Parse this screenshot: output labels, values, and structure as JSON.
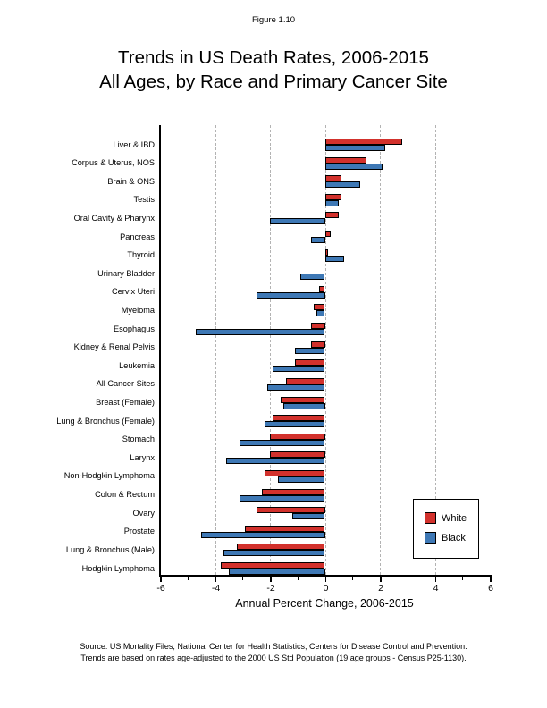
{
  "header": {
    "figure_label": "Figure 1.10",
    "title_line1": "Trends in US Death Rates, 2006-2015",
    "title_line2": "All Ages, by Race and Primary Cancer Site"
  },
  "chart_data": {
    "type": "bar",
    "orientation": "horizontal",
    "title": "Trends in US Death Rates, 2006-2015 — All Ages, by Race and Primary Cancer Site",
    "xlabel": "Annual Percent Change, 2006-2015",
    "xlim": [
      -6,
      6
    ],
    "major_ticks": [
      -6,
      -4,
      -2,
      0,
      2,
      4,
      6
    ],
    "minor_ticks": [
      -5,
      -3,
      -1,
      1,
      3,
      5
    ],
    "gridlines": [
      -4,
      -2,
      0,
      2,
      4
    ],
    "grid": "dashed-vertical",
    "legend_position": "inside-right",
    "categories": [
      "Liver & IBD",
      "Corpus & Uterus, NOS",
      "Brain & ONS",
      "Testis",
      "Oral Cavity & Pharynx",
      "Pancreas",
      "Thyroid",
      "Urinary Bladder",
      "Cervix Uteri",
      "Myeloma",
      "Esophagus",
      "Kidney & Renal Pelvis",
      "Leukemia",
      "All Cancer Sites",
      "Breast (Female)",
      "Lung & Bronchus (Female)",
      "Stomach",
      "Larynx",
      "Non-Hodgkin Lymphoma",
      "Colon & Rectum",
      "Ovary",
      "Prostate",
      "Lung & Bronchus (Male)",
      "Hodgkin Lymphoma"
    ],
    "series": [
      {
        "name": "White",
        "color": "#d2312c",
        "values": [
          2.8,
          1.5,
          0.6,
          0.6,
          0.5,
          0.2,
          0.1,
          0.0,
          -0.2,
          -0.4,
          -0.5,
          -0.5,
          -1.1,
          -1.4,
          -1.6,
          -1.9,
          -2.0,
          -2.0,
          -2.2,
          -2.3,
          -2.5,
          -2.9,
          -3.2,
          -3.8
        ]
      },
      {
        "name": "Black",
        "color": "#3e78b5",
        "values": [
          2.2,
          2.1,
          1.3,
          0.5,
          -2.0,
          -0.5,
          0.7,
          -0.9,
          -2.5,
          -0.3,
          -4.7,
          -1.1,
          -1.9,
          -2.1,
          -1.5,
          -2.2,
          -3.1,
          -3.6,
          -1.7,
          -3.1,
          -1.2,
          -4.5,
          -3.7,
          -3.5
        ]
      }
    ]
  },
  "footer": {
    "source_line1": "Source: US Mortality Files, National Center for Health Statistics, Centers for Disease Control and Prevention.",
    "source_line2": "Trends are based on rates age-adjusted to the 2000 US Std Population (19 age groups - Census P25-1130)."
  }
}
